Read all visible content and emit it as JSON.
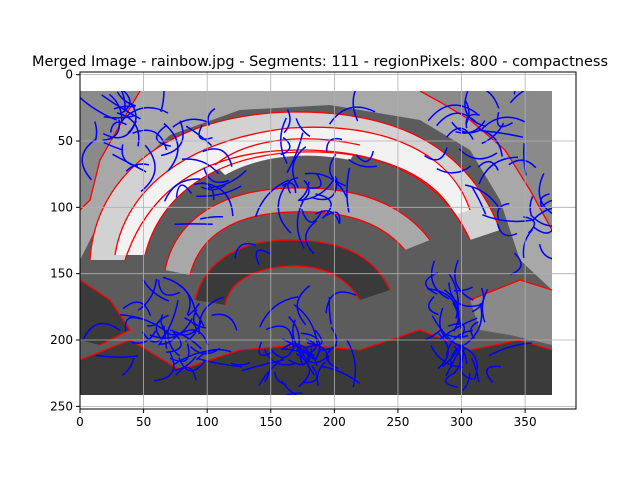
{
  "chart_data": {
    "type": "heatmap",
    "title": "Merged Image - rainbow.jpg - Segments: 111 - regionPixels: 800 - compactness",
    "xlabel": "",
    "ylabel": "",
    "xlim": [
      0,
      390
    ],
    "ylim": [
      252,
      -2
    ],
    "image_extent": {
      "x": [
        0,
        372
      ],
      "y": [
        -2,
        238
      ]
    },
    "y_inverted": true,
    "grid": true,
    "x_ticks": [
      0,
      50,
      100,
      150,
      200,
      250,
      300,
      350
    ],
    "y_ticks": [
      0,
      50,
      100,
      150,
      200,
      250
    ],
    "x_tick_labels": [
      "0",
      "50",
      "100",
      "150",
      "200",
      "250",
      "300",
      "350"
    ],
    "y_tick_labels": [
      "0",
      "50",
      "100",
      "150",
      "200",
      "250"
    ],
    "grayscale_levels": [
      "#3a3a3a",
      "#5c5c5c",
      "#8a8a8a",
      "#a8a8a8",
      "#d2d2d2",
      "#f2f2f2"
    ],
    "boundary_color": "#ff0000",
    "streamline_color": "#0000ff",
    "num_segments": 111
  }
}
